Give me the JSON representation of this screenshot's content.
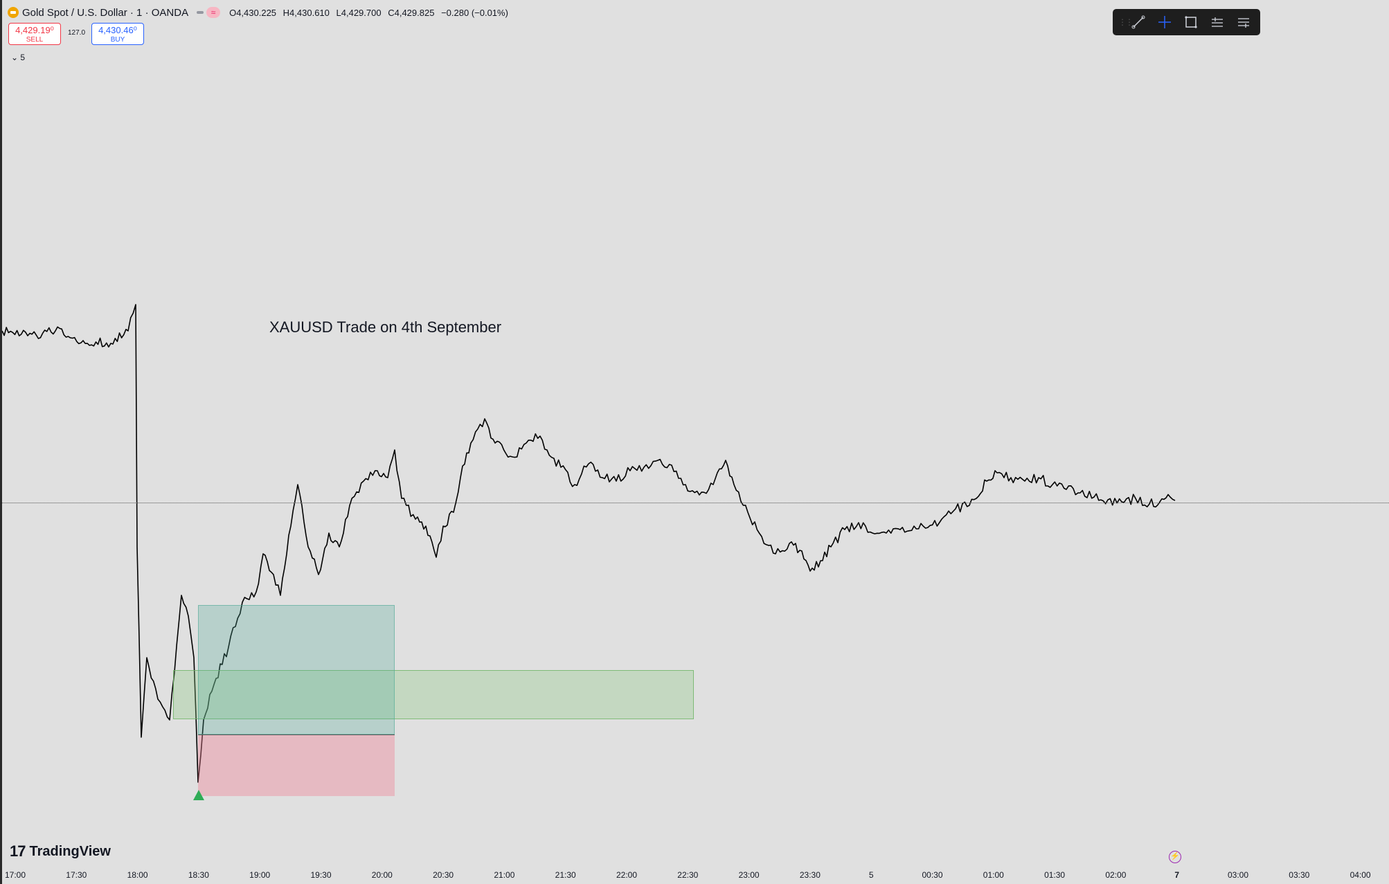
{
  "header": {
    "symbol_title": "Gold Spot / U.S. Dollar · 1 · OANDA",
    "status_icon": "≈",
    "ohlc": {
      "open": "O4,430.225",
      "high": "H4,430.610",
      "low": "L4,429.700",
      "close": "C4,429.825",
      "change": "−0.280 (−0.01%)"
    }
  },
  "trade": {
    "sell_price": "4,429.19⁰",
    "sell_label": "SELL",
    "spread": "127.0",
    "buy_price": "4,430.46⁰",
    "buy_label": "BUY"
  },
  "indicators": {
    "toggle_label": "⌄ 5"
  },
  "toolbar": {
    "buttons": [
      "trend-line-icon",
      "crosshair-icon",
      "rectangle-icon",
      "long-position-icon",
      "short-position-icon"
    ]
  },
  "annotation": {
    "text": "XAUUSD Trade on 4th September"
  },
  "branding": {
    "logo_mark": "17",
    "logo_text": "TradingView"
  },
  "colors": {
    "sell": "#f23645",
    "buy": "#2962ff",
    "target_zone": "#50aa96",
    "stop_zone": "#f08296",
    "supply_zone": "#8cc882",
    "entry_marker": "#2eac56",
    "candles": "#000000"
  },
  "chart_data": {
    "type": "candlestick",
    "x_ticks": [
      {
        "label": "17:00",
        "bold": false
      },
      {
        "label": "17:30",
        "bold": false
      },
      {
        "label": "18:00",
        "bold": false
      },
      {
        "label": "18:30",
        "bold": false
      },
      {
        "label": "19:00",
        "bold": false
      },
      {
        "label": "19:30",
        "bold": false
      },
      {
        "label": "20:00",
        "bold": false
      },
      {
        "label": "20:30",
        "bold": false
      },
      {
        "label": "21:00",
        "bold": false
      },
      {
        "label": "21:30",
        "bold": false
      },
      {
        "label": "22:00",
        "bold": false
      },
      {
        "label": "22:30",
        "bold": false
      },
      {
        "label": "23:00",
        "bold": false
      },
      {
        "label": "23:30",
        "bold": false
      },
      {
        "label": "5",
        "bold": false
      },
      {
        "label": "00:30",
        "bold": false
      },
      {
        "label": "01:00",
        "bold": false
      },
      {
        "label": "01:30",
        "bold": false
      },
      {
        "label": "02:00",
        "bold": false
      },
      {
        "label": "7",
        "bold": true
      },
      {
        "label": "03:00",
        "bold": false
      },
      {
        "label": "03:30",
        "bold": false
      },
      {
        "label": "04:00",
        "bold": false
      }
    ],
    "current_price": 4429.825,
    "grid": false
  }
}
